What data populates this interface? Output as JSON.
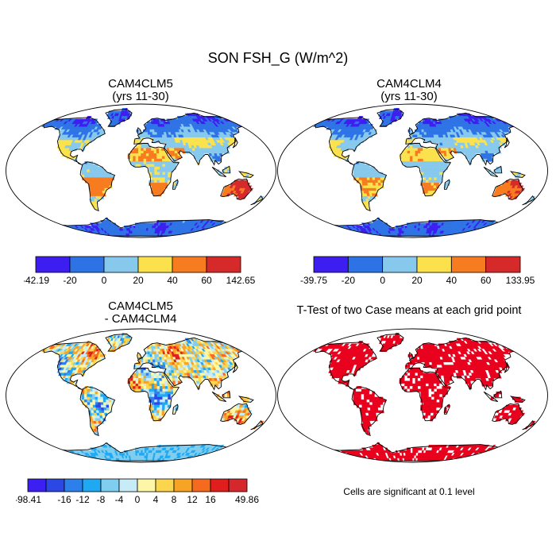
{
  "title": "SON FSH_G (W/m^2)",
  "panels": [
    {
      "id": "clm5",
      "title_line1": "CAM4CLM5",
      "title_line2": "(yrs 11-30)",
      "colorbar": {
        "labels": [
          "-42.19",
          "-20",
          "0",
          "20",
          "40",
          "60",
          "142.65"
        ],
        "colors": [
          "#3d1ef0",
          "#2e73e6",
          "#87c9ed",
          "#fbe24d",
          "#f77b1f",
          "#d62a2a"
        ]
      }
    },
    {
      "id": "clm4",
      "title_line1": "CAM4CLM4",
      "title_line2": "(yrs 11-30)",
      "colorbar": {
        "labels": [
          "-39.75",
          "-20",
          "0",
          "20",
          "40",
          "60",
          "133.95"
        ],
        "colors": [
          "#3d1ef0",
          "#2e73e6",
          "#87c9ed",
          "#fbe24d",
          "#f77b1f",
          "#d62a2a"
        ]
      }
    },
    {
      "id": "diff",
      "title_line1": "CAM4CLM5",
      "title_line2": "- CAM4CLM4",
      "colorbar": {
        "labels": [
          "-98.41",
          "-16",
          "-12",
          "-8",
          "-4",
          "0",
          "4",
          "8",
          "12",
          "16",
          "49.86"
        ],
        "label_slots": [
          0,
          2,
          3,
          4,
          5,
          6,
          7,
          8,
          9,
          10,
          12
        ],
        "colors": [
          "#3c1ff2",
          "#2b47e4",
          "#2d7fe9",
          "#1fa9f2",
          "#7fcdef",
          "#c7ecf7",
          "#fdf6a6",
          "#fbd54d",
          "#f7a425",
          "#f56a1e",
          "#e01e1e",
          "#d4282c"
        ]
      }
    },
    {
      "id": "ttest",
      "title_line1": "T-Test of two Case means at each grid point",
      "note": "Cells are significant at 0.1 level"
    }
  ]
}
